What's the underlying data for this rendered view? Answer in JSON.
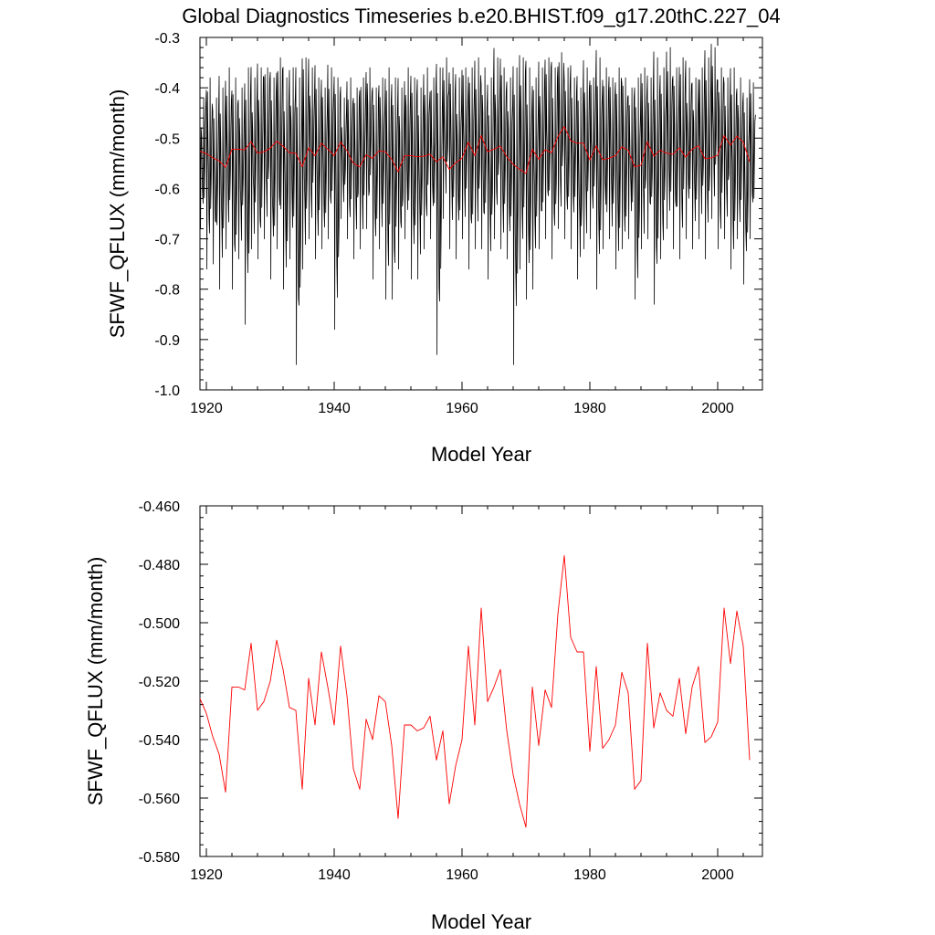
{
  "title": "Global Diagnostics Timeseries b.e20.BHIST.f09_g17.20thC.227_04",
  "chart_data": [
    {
      "type": "line",
      "xlabel": "Model Year",
      "ylabel": "SFWF_QFLUX (mm/month)",
      "xlim": [
        1919,
        2007
      ],
      "ylim": [
        -1.0,
        -0.3
      ],
      "x_ticks": [
        1920,
        1940,
        1960,
        1980,
        2000
      ],
      "x_tick_labels": [
        "1920",
        "1940",
        "1960",
        "1980",
        "2000"
      ],
      "y_ticks": [
        -1.0,
        -0.9,
        -0.8,
        -0.7,
        -0.6,
        -0.5,
        -0.4,
        -0.3
      ],
      "y_tick_labels": [
        "-1.0",
        "-0.9",
        "-0.8",
        "-0.7",
        "-0.6",
        "-0.5",
        "-0.4",
        "-0.3"
      ],
      "grid": false,
      "series": [
        {
          "color": "#000000",
          "monthly": true,
          "start_year": 1919,
          "annual_min": [
            -0.68,
            -0.76,
            -0.75,
            -0.8,
            -0.72,
            -0.8,
            -0.74,
            -0.87,
            -0.72,
            -0.74,
            -0.7,
            -0.78,
            -0.72,
            -0.8,
            -0.74,
            -0.95,
            -0.76,
            -0.7,
            -0.74,
            -0.72,
            -0.7,
            -0.88,
            -0.66,
            -0.7,
            -0.74,
            -0.72,
            -0.68,
            -0.78,
            -0.72,
            -0.82,
            -0.82,
            -0.76,
            -0.7,
            -0.78,
            -0.78,
            -0.72,
            -0.7,
            -0.93,
            -0.66,
            -0.72,
            -0.74,
            -0.7,
            -0.76,
            -0.72,
            -0.72,
            -0.78,
            -0.7,
            -0.72,
            -0.74,
            -0.95,
            -0.76,
            -0.82,
            -0.8,
            -0.72,
            -0.7,
            -0.74,
            -0.68,
            -0.7,
            -0.72,
            -0.78,
            -0.72,
            -0.7,
            -0.8,
            -0.72,
            -0.7,
            -0.76,
            -0.72,
            -0.7,
            -0.82,
            -0.72,
            -0.7,
            -0.83,
            -0.74,
            -0.68,
            -0.72,
            -0.74,
            -0.7,
            -0.72,
            -0.7,
            -0.74,
            -0.66,
            -0.72,
            -0.7,
            -0.76,
            -0.7,
            -0.79,
            -0.7
          ],
          "annual_max": [
            -0.42,
            -0.38,
            -0.42,
            -0.4,
            -0.36,
            -0.38,
            -0.4,
            -0.36,
            -0.38,
            -0.36,
            -0.36,
            -0.38,
            -0.34,
            -0.38,
            -0.36,
            -0.38,
            -0.34,
            -0.36,
            -0.38,
            -0.4,
            -0.36,
            -0.38,
            -0.42,
            -0.38,
            -0.4,
            -0.38,
            -0.36,
            -0.4,
            -0.38,
            -0.36,
            -0.38,
            -0.4,
            -0.36,
            -0.38,
            -0.4,
            -0.36,
            -0.38,
            -0.36,
            -0.34,
            -0.36,
            -0.38,
            -0.36,
            -0.36,
            -0.34,
            -0.36,
            -0.38,
            -0.34,
            -0.36,
            -0.38,
            -0.36,
            -0.34,
            -0.36,
            -0.38,
            -0.36,
            -0.34,
            -0.36,
            -0.33,
            -0.36,
            -0.38,
            -0.4,
            -0.36,
            -0.38,
            -0.34,
            -0.36,
            -0.38,
            -0.36,
            -0.38,
            -0.4,
            -0.38,
            -0.36,
            -0.38,
            -0.34,
            -0.36,
            -0.32,
            -0.36,
            -0.34,
            -0.36,
            -0.38,
            -0.36,
            -0.34,
            -0.32,
            -0.36,
            -0.38,
            -0.36,
            -0.38,
            -0.42,
            -0.39
          ]
        },
        {
          "color": "#ff0000",
          "x": [
            1919,
            1920,
            1921,
            1922,
            1923,
            1924,
            1925,
            1926,
            1927,
            1928,
            1929,
            1930,
            1931,
            1932,
            1933,
            1934,
            1935,
            1936,
            1937,
            1938,
            1939,
            1940,
            1941,
            1942,
            1943,
            1944,
            1945,
            1946,
            1947,
            1948,
            1949,
            1950,
            1951,
            1952,
            1953,
            1954,
            1955,
            1956,
            1957,
            1958,
            1959,
            1960,
            1961,
            1962,
            1963,
            1964,
            1965,
            1966,
            1967,
            1968,
            1969,
            1970,
            1971,
            1972,
            1973,
            1974,
            1975,
            1976,
            1977,
            1978,
            1979,
            1980,
            1981,
            1982,
            1983,
            1984,
            1985,
            1986,
            1987,
            1988,
            1989,
            1990,
            1991,
            1992,
            1993,
            1994,
            1995,
            1996,
            1997,
            1998,
            1999,
            2000,
            2001,
            2002,
            2003,
            2004,
            2005
          ],
          "y": [
            -0.526,
            -0.531,
            -0.539,
            -0.545,
            -0.558,
            -0.522,
            -0.522,
            -0.523,
            -0.507,
            -0.53,
            -0.527,
            -0.52,
            -0.506,
            -0.516,
            -0.529,
            -0.53,
            -0.557,
            -0.519,
            -0.535,
            -0.51,
            -0.522,
            -0.535,
            -0.508,
            -0.525,
            -0.55,
            -0.557,
            -0.533,
            -0.54,
            -0.525,
            -0.527,
            -0.542,
            -0.567,
            -0.535,
            -0.535,
            -0.537,
            -0.536,
            -0.532,
            -0.547,
            -0.537,
            -0.562,
            -0.549,
            -0.54,
            -0.508,
            -0.535,
            -0.495,
            -0.527,
            -0.522,
            -0.516,
            -0.537,
            -0.552,
            -0.562,
            -0.57,
            -0.522,
            -0.542,
            -0.523,
            -0.529,
            -0.497,
            -0.477,
            -0.505,
            -0.51,
            -0.51,
            -0.544,
            -0.515,
            -0.543,
            -0.54,
            -0.535,
            -0.517,
            -0.524,
            -0.557,
            -0.554,
            -0.507,
            -0.536,
            -0.524,
            -0.53,
            -0.532,
            -0.519,
            -0.538,
            -0.522,
            -0.515,
            -0.541,
            -0.539,
            -0.534,
            -0.495,
            -0.514,
            -0.496,
            -0.508,
            -0.547
          ]
        }
      ]
    },
    {
      "type": "line",
      "xlabel": "Model Year",
      "ylabel": "SFWF_QFLUX (mm/month)",
      "xlim": [
        1919,
        2007
      ],
      "ylim": [
        -0.58,
        -0.46
      ],
      "x_ticks": [
        1920,
        1940,
        1960,
        1980,
        2000
      ],
      "x_tick_labels": [
        "1920",
        "1940",
        "1960",
        "1980",
        "2000"
      ],
      "y_ticks": [
        -0.58,
        -0.56,
        -0.54,
        -0.52,
        -0.5,
        -0.48,
        -0.46
      ],
      "y_tick_labels": [
        "-0.580",
        "-0.560",
        "-0.540",
        "-0.520",
        "-0.500",
        "-0.480",
        "-0.460"
      ],
      "grid": false,
      "series": [
        {
          "color": "#ff0000",
          "x": [
            1919,
            1920,
            1921,
            1922,
            1923,
            1924,
            1925,
            1926,
            1927,
            1928,
            1929,
            1930,
            1931,
            1932,
            1933,
            1934,
            1935,
            1936,
            1937,
            1938,
            1939,
            1940,
            1941,
            1942,
            1943,
            1944,
            1945,
            1946,
            1947,
            1948,
            1949,
            1950,
            1951,
            1952,
            1953,
            1954,
            1955,
            1956,
            1957,
            1958,
            1959,
            1960,
            1961,
            1962,
            1963,
            1964,
            1965,
            1966,
            1967,
            1968,
            1969,
            1970,
            1971,
            1972,
            1973,
            1974,
            1975,
            1976,
            1977,
            1978,
            1979,
            1980,
            1981,
            1982,
            1983,
            1984,
            1985,
            1986,
            1987,
            1988,
            1989,
            1990,
            1991,
            1992,
            1993,
            1994,
            1995,
            1996,
            1997,
            1998,
            1999,
            2000,
            2001,
            2002,
            2003,
            2004,
            2005
          ],
          "y": [
            -0.526,
            -0.531,
            -0.539,
            -0.545,
            -0.558,
            -0.522,
            -0.522,
            -0.523,
            -0.507,
            -0.53,
            -0.527,
            -0.52,
            -0.506,
            -0.516,
            -0.529,
            -0.53,
            -0.557,
            -0.519,
            -0.535,
            -0.51,
            -0.522,
            -0.535,
            -0.508,
            -0.525,
            -0.55,
            -0.557,
            -0.533,
            -0.54,
            -0.525,
            -0.527,
            -0.542,
            -0.567,
            -0.535,
            -0.535,
            -0.537,
            -0.536,
            -0.532,
            -0.547,
            -0.537,
            -0.562,
            -0.549,
            -0.54,
            -0.508,
            -0.535,
            -0.495,
            -0.527,
            -0.522,
            -0.516,
            -0.537,
            -0.552,
            -0.562,
            -0.57,
            -0.522,
            -0.542,
            -0.523,
            -0.529,
            -0.497,
            -0.477,
            -0.505,
            -0.51,
            -0.51,
            -0.544,
            -0.515,
            -0.543,
            -0.54,
            -0.535,
            -0.517,
            -0.524,
            -0.557,
            -0.554,
            -0.507,
            -0.536,
            -0.524,
            -0.53,
            -0.532,
            -0.519,
            -0.538,
            -0.522,
            -0.515,
            -0.541,
            -0.539,
            -0.534,
            -0.495,
            -0.514,
            -0.496,
            -0.508,
            -0.547
          ]
        }
      ]
    }
  ]
}
